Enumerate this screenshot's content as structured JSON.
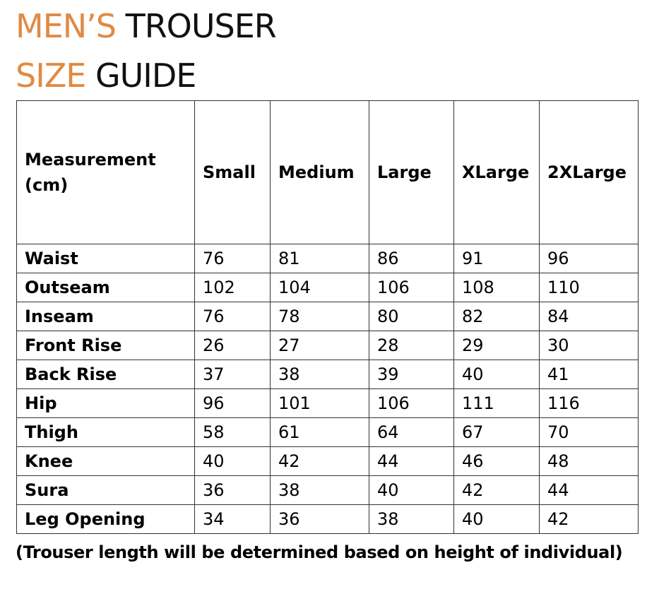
{
  "title": {
    "line1_accent": "MEN’S",
    "line1_rest": "TROUSER",
    "line2_accent": "SIZE",
    "line2_rest": "GUIDE"
  },
  "colors": {
    "accent": "#e08a43",
    "text": "#111111",
    "border": "#333333"
  },
  "table": {
    "header_label": "Measurement (cm)",
    "columns": [
      "Small",
      "Medium",
      "Large",
      "XLarge",
      "2XLarge"
    ],
    "rows": [
      {
        "label": "Waist",
        "values": [
          "76",
          "81",
          "86",
          "91",
          "96"
        ]
      },
      {
        "label": "Outseam",
        "values": [
          "102",
          "104",
          "106",
          "108",
          "110"
        ]
      },
      {
        "label": "Inseam",
        "values": [
          "76",
          "78",
          "80",
          "82",
          "84"
        ]
      },
      {
        "label": "Front Rise",
        "values": [
          "26",
          "27",
          "28",
          "29",
          "30"
        ]
      },
      {
        "label": "Back Rise",
        "values": [
          "37",
          "38",
          "39",
          "40",
          "41"
        ]
      },
      {
        "label": "Hip",
        "values": [
          "96",
          "101",
          "106",
          "111",
          "116"
        ]
      },
      {
        "label": "Thigh",
        "values": [
          "58",
          "61",
          "64",
          "67",
          "70"
        ]
      },
      {
        "label": "Knee",
        "values": [
          "40",
          "42",
          "44",
          "46",
          "48"
        ]
      },
      {
        "label": "Sura",
        "values": [
          "36",
          "38",
          "40",
          "42",
          "44"
        ]
      },
      {
        "label": "Leg Opening",
        "values": [
          "34",
          "36",
          "38",
          "40",
          "42"
        ]
      }
    ]
  },
  "footnote": "(Trouser length will be determined based on height of individual)"
}
